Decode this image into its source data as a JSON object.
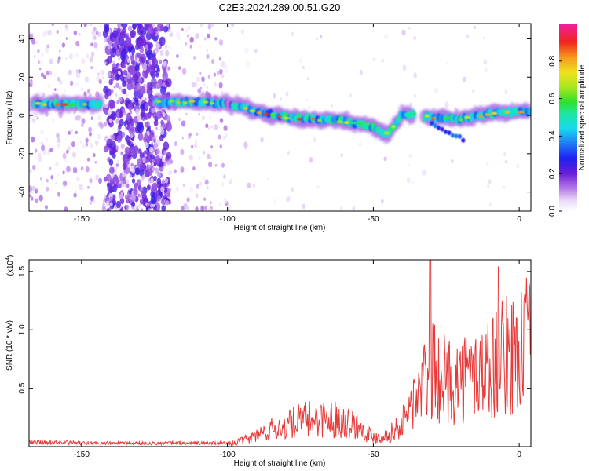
{
  "page": {
    "title": "C2E3.2024.289.00.51.G20"
  },
  "chart_data": [
    {
      "type": "heatmap",
      "title": "C2E3.2024.289.00.51.G20",
      "xlabel": "Height of straight line (km)",
      "ylabel": "Frequency (Hz)",
      "xlim": [
        -168,
        4
      ],
      "ylim": [
        -50,
        48
      ],
      "x_ticks": [
        -150,
        -100,
        -50,
        0
      ],
      "x_tick_labels": [
        "-150",
        "-100",
        "-50",
        "0"
      ],
      "y_ticks": [
        -40,
        -20,
        0,
        20,
        40
      ],
      "y_tick_labels": [
        "-40",
        "-20",
        "0",
        "20",
        "40"
      ],
      "colorbar": {
        "label": "Normalized spectral amplitude",
        "range": [
          0,
          1
        ],
        "ticks": [
          0.0,
          0.2,
          0.4,
          0.6,
          0.8
        ],
        "tick_labels": [
          "0.0",
          "0.2",
          "0.4",
          "0.6",
          "0.8"
        ],
        "colormap": "rainbow (violet-blue-cyan-green-yellow-orange-red-magenta)"
      },
      "ridge": {
        "description": "dominant frequency band vs height",
        "x": [
          -166,
          -150,
          -144,
          -125,
          -110,
          -100,
          -95,
          -90,
          -80,
          -70,
          -60,
          -50,
          -45,
          -40,
          -30,
          -20,
          -10,
          0,
          4
        ],
        "y": [
          6,
          6,
          6,
          7,
          7,
          6,
          5,
          2,
          -1,
          -2,
          -3,
          -6,
          -10,
          1,
          -1,
          -2,
          1,
          2,
          2
        ]
      }
    },
    {
      "type": "line",
      "title": "",
      "xlabel": "Height of straight line (km)",
      "ylabel": "SNR (10 * v/v)",
      "y_multiplier": "(x10",
      "y_multiplier_exp": "4",
      "y_multiplier_close": ")",
      "xlim": [
        -168,
        4
      ],
      "ylim": [
        0,
        1.6
      ],
      "x_ticks": [
        -150,
        -100,
        -50,
        0
      ],
      "x_tick_labels": [
        "-150",
        "-100",
        "-50",
        "0"
      ],
      "y_ticks": [
        0.5,
        1.0,
        1.5
      ],
      "y_tick_labels": [
        "0.5",
        "1.0",
        "1.5"
      ],
      "color": "#e83a3a",
      "envelope": {
        "x": [
          -168,
          -160,
          -150,
          -140,
          -130,
          -120,
          -110,
          -100,
          -95,
          -90,
          -85,
          -80,
          -75,
          -70,
          -65,
          -60,
          -55,
          -50,
          -45,
          -40,
          -37,
          -35,
          -32,
          -30,
          -28,
          -25,
          -20,
          -15,
          -10,
          -5,
          0,
          4
        ],
        "y": [
          0.04,
          0.04,
          0.03,
          0.03,
          0.03,
          0.03,
          0.03,
          0.03,
          0.06,
          0.12,
          0.18,
          0.22,
          0.28,
          0.3,
          0.3,
          0.28,
          0.22,
          0.1,
          0.12,
          0.25,
          0.45,
          0.55,
          0.7,
          0.8,
          0.75,
          0.7,
          0.72,
          0.78,
          0.85,
          0.95,
          1.05,
          1.1
        ]
      },
      "peaks": [
        {
          "x": -30.5,
          "y": 1.6
        },
        {
          "x": -7,
          "y": 1.54
        },
        {
          "x": 2,
          "y": 1.3
        }
      ]
    }
  ]
}
